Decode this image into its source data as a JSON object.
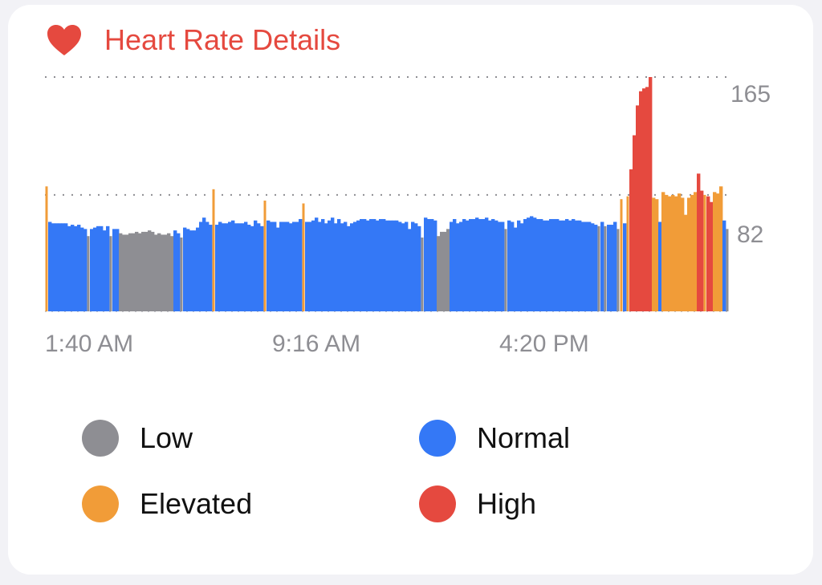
{
  "header": {
    "title": "Heart Rate Details",
    "icon": "heart-icon",
    "accent": "#e5493f"
  },
  "chart_data": {
    "type": "bar",
    "title": "Heart Rate Details",
    "y_ticks": [
      82,
      165
    ],
    "y_tick_labels": [
      "82",
      "165"
    ],
    "ylim": [
      0,
      165
    ],
    "x_tick_labels": [
      "1:40 AM",
      "9:16 AM",
      "4:20 PM"
    ],
    "grid": "dotted horizontal lines at tick values",
    "colors": {
      "Low": "#8e8e93",
      "Normal": "#3478f6",
      "Elevated": "#f19c38",
      "High": "#e5493f"
    },
    "series": [
      {
        "category": "Normal",
        "values": [
          63,
          62,
          62,
          62,
          62,
          62,
          60,
          61,
          60,
          61,
          59,
          58,
          58,
          59,
          60,
          60,
          57,
          60,
          58,
          58,
          57,
          55,
          59,
          58,
          57,
          57,
          59,
          63,
          66,
          63,
          61,
          61,
          63,
          62,
          62,
          63,
          64,
          62,
          62,
          62,
          63,
          61,
          60,
          64,
          62,
          60,
          64,
          63,
          63,
          59,
          63,
          63,
          63,
          62,
          63,
          63,
          65,
          63,
          63,
          64,
          66,
          63,
          65,
          62,
          64,
          66,
          62,
          65,
          62,
          63,
          60,
          62,
          63,
          64,
          65,
          65,
          64,
          65,
          65,
          64,
          65,
          65,
          64,
          64,
          64,
          64,
          63,
          62,
          63,
          58,
          63,
          62,
          60,
          66,
          65,
          65,
          64,
          63,
          65,
          62,
          63,
          65,
          64,
          65,
          65,
          66,
          65,
          65,
          66,
          64,
          65,
          64,
          63,
          63,
          64,
          63,
          59,
          64,
          62,
          65,
          66,
          67,
          66,
          65,
          65,
          64,
          64,
          65,
          65,
          65,
          64,
          64,
          65,
          64,
          65,
          64,
          64,
          63,
          63,
          63,
          62,
          61,
          63,
          61,
          61,
          63,
          62,
          63,
          64,
          63,
          62,
          62,
          63
        ]
      },
      {
        "category": "Low",
        "values": [
          53,
          53,
          55,
          54,
          54,
          55,
          55,
          56,
          55,
          56,
          56,
          57,
          56,
          54,
          55,
          54,
          54,
          55,
          53,
          52,
          52,
          53,
          56,
          56,
          58,
          58,
          60,
          60,
          58,
          58,
          56,
          57,
          58,
          56,
          57
        ]
      },
      {
        "category": "Elevated",
        "values": [
          88,
          86,
          78,
          76,
          79,
          81,
          80,
          79,
          84,
          82,
          81,
          82,
          81,
          83,
          80,
          68,
          80,
          82,
          84,
          82,
          84,
          83
        ]
      },
      {
        "category": "High",
        "values": [
          100,
          124,
          145,
          155,
          157,
          158,
          165,
          97,
          85,
          81,
          77,
          88,
          81
        ]
      }
    ]
  },
  "legend": [
    {
      "label": "Low",
      "color": "#8e8e93"
    },
    {
      "label": "Normal",
      "color": "#3478f6"
    },
    {
      "label": "Elevated",
      "color": "#f19c38"
    },
    {
      "label": "High",
      "color": "#e5493f"
    }
  ]
}
